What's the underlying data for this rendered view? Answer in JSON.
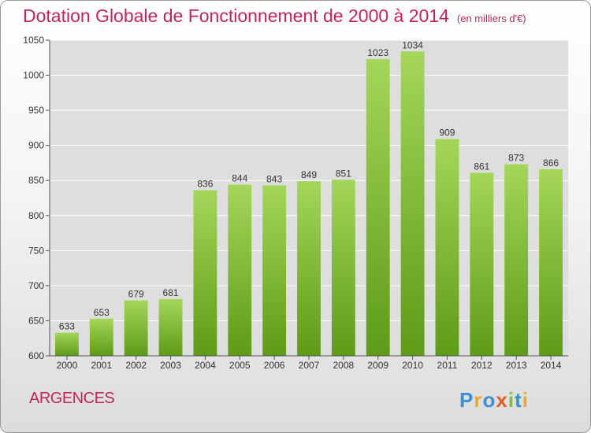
{
  "header": {
    "title": "Dotation Globale de Fonctionnement de 2000 à 2014",
    "subtitle": "(en milliers d'€)"
  },
  "commune": "ARGENCES",
  "logo": {
    "text": "Proxiti"
  },
  "colors": {
    "accent": "#c2245a",
    "bar_top": "#a4d65a",
    "bar_bottom": "#5e9b17",
    "grid": "#ffffff",
    "plot_bg": "#dedede"
  },
  "chart_data": {
    "type": "bar",
    "title": "Dotation Globale de Fonctionnement de 2000 à 2014",
    "subtitle": "(en milliers d'€)",
    "categories": [
      "2000",
      "2001",
      "2002",
      "2003",
      "2004",
      "2005",
      "2006",
      "2007",
      "2008",
      "2009",
      "2010",
      "2011",
      "2012",
      "2013",
      "2014"
    ],
    "values": [
      633,
      653,
      679,
      681,
      836,
      844,
      843,
      849,
      851,
      1023,
      1034,
      909,
      861,
      873,
      866
    ],
    "ylim": [
      600,
      1050
    ],
    "yticks": [
      600,
      650,
      700,
      750,
      800,
      850,
      900,
      950,
      1000,
      1050
    ],
    "grid": true,
    "xlabel": "",
    "ylabel": ""
  }
}
